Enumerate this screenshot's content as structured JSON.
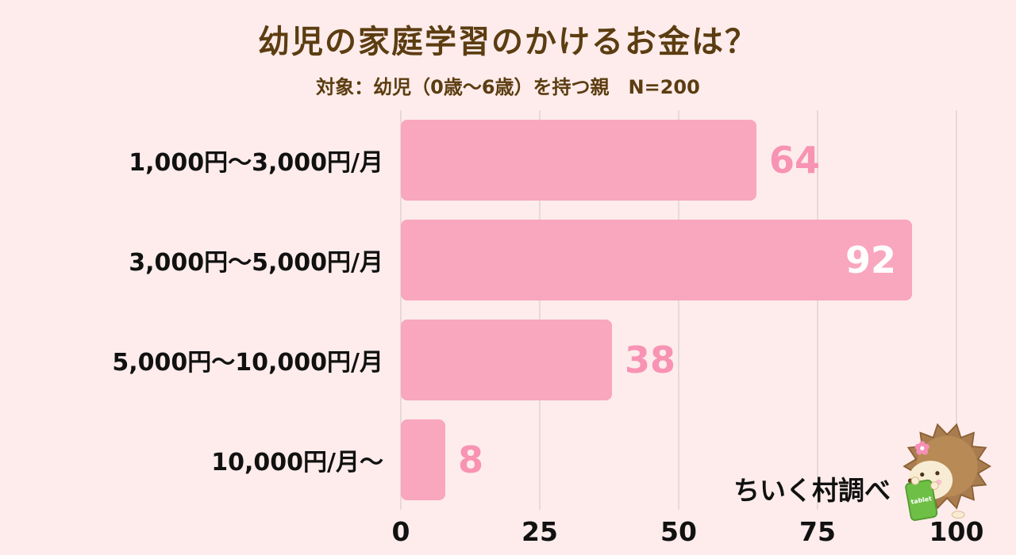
{
  "page": {
    "bg_color": "#fdeceb"
  },
  "header": {
    "title": "幼児の家庭学習のかけるお金は？",
    "subtitle": "対象：幼児（0歳～6歳）を持つ親　N=200",
    "title_color": "#5c3d11"
  },
  "chart_data": {
    "type": "bar",
    "orientation": "horizontal",
    "title": "幼児の家庭学習のかけるお金は？",
    "categories": [
      "1,000円～3,000円/月",
      "3,000円～5,000円/月",
      "5,000円～10,000円/月",
      "10,000円/月～"
    ],
    "values": [
      64,
      92,
      38,
      8
    ],
    "xlim": [
      0,
      100
    ],
    "x_ticks": [
      0,
      25,
      50,
      75,
      100
    ],
    "grid": true,
    "bar_color": "#f9a6bf",
    "value_label_color": "#f893b4",
    "value_label_inside_color": "#ffffff",
    "grid_color": "#e7dad6"
  },
  "footer": {
    "source_label": "ちいく村調べ",
    "mascot_icon": "hedgehog-with-tablet",
    "tablet_label": "tablet"
  }
}
